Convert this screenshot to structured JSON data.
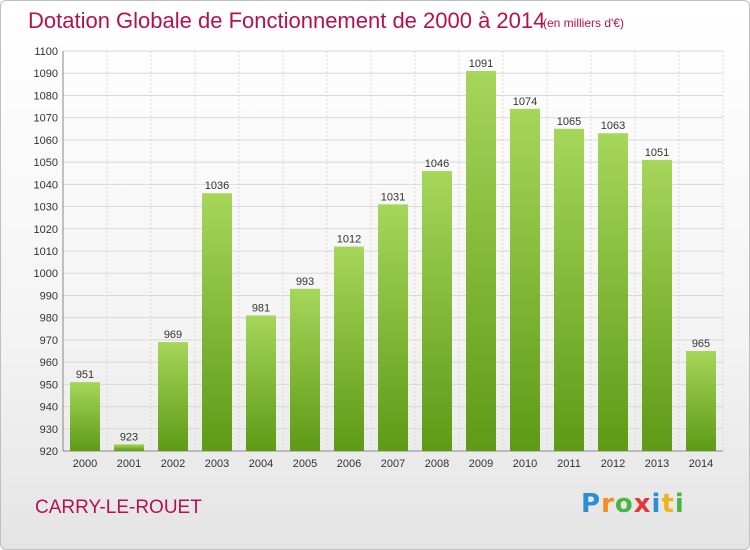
{
  "header": {
    "title": "Dotation Globale de Fonctionnement de 2000 à 2014",
    "subtitle": "(en milliers d'€)"
  },
  "footer": {
    "city": "CARRY-LE-ROUET",
    "logo_text": "Proxiti"
  },
  "colors": {
    "title": "#b3124f",
    "bar_top": "#a6d65a",
    "bar_bottom": "#5e9a16",
    "grid": "#d9d9d9"
  },
  "chart_data": {
    "type": "bar",
    "title": "Dotation Globale de Fonctionnement de 2000 à 2014",
    "subtitle": "(en milliers d'€)",
    "categories": [
      "2000",
      "2001",
      "2002",
      "2003",
      "2004",
      "2005",
      "2006",
      "2007",
      "2008",
      "2009",
      "2010",
      "2011",
      "2012",
      "2013",
      "2014"
    ],
    "values": [
      951,
      923,
      969,
      1036,
      981,
      993,
      1012,
      1031,
      1046,
      1091,
      1074,
      1065,
      1063,
      1051,
      965
    ],
    "ylim": [
      920,
      1100
    ],
    "yticks": [
      920,
      930,
      940,
      950,
      960,
      970,
      980,
      990,
      1000,
      1010,
      1020,
      1030,
      1040,
      1050,
      1060,
      1070,
      1080,
      1090,
      1100
    ],
    "xlabel": "",
    "ylabel": "",
    "grid": true,
    "data_labels": true
  }
}
